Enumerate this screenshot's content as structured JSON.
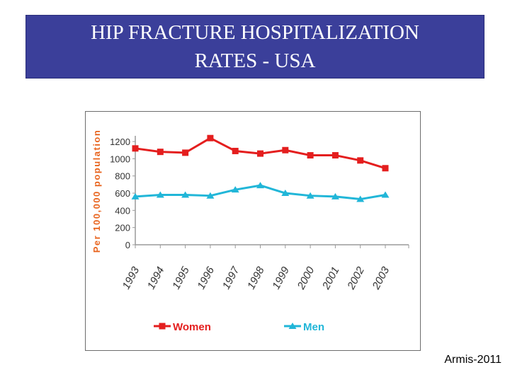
{
  "title": "HIP FRACTURE HOSPITALIZATION\nRATES - USA",
  "credit": "Armis-2011",
  "colors": {
    "banner": "#3b3f9a",
    "women": "#e41e1e",
    "men": "#21b6d8",
    "ylabel": "#e8641e"
  },
  "chart_data": {
    "type": "line",
    "title": "",
    "xlabel": "",
    "ylabel": "Per 100,000 population",
    "categories": [
      "1993",
      "1994",
      "1995",
      "1996",
      "1997",
      "1998",
      "1999",
      "2000",
      "2001",
      "2002",
      "2003"
    ],
    "y_ticks": [
      "0",
      "200",
      "400",
      "600",
      "800",
      "1000",
      "1200"
    ],
    "ylim": [
      0,
      1250
    ],
    "grid": false,
    "legend_position": "bottom",
    "series": [
      {
        "name": "Women",
        "values": [
          1120,
          1080,
          1070,
          1240,
          1090,
          1060,
          1100,
          1040,
          1040,
          980,
          890
        ]
      },
      {
        "name": "Men",
        "values": [
          560,
          580,
          580,
          570,
          640,
          690,
          600,
          570,
          560,
          530,
          580
        ]
      }
    ]
  }
}
